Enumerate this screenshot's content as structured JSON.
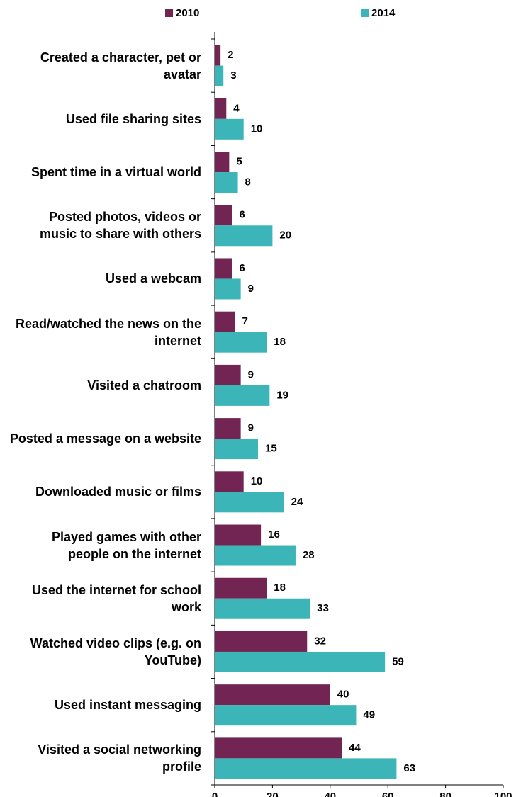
{
  "chart_data": {
    "type": "hbar",
    "categories": [
      "Created a character, pet or avatar",
      "Used file sharing sites",
      "Spent time in a virtual world",
      "Posted photos, videos or music to share with others",
      "Used a webcam",
      "Read/watched the news on the internet",
      "Visited a chatroom",
      "Posted a message on a website",
      "Downloaded music or films",
      "Played games with other people on the internet",
      "Used the internet for school work",
      "Watched video clips (e.g. on YouTube)",
      "Used instant messaging",
      "Visited a social networking profile"
    ],
    "series": [
      {
        "name": "2010",
        "color": "#722552",
        "values": [
          2,
          4,
          5,
          6,
          6,
          7,
          9,
          9,
          10,
          16,
          18,
          32,
          40,
          44
        ]
      },
      {
        "name": "2014",
        "color": "#3bb5b8",
        "values": [
          3,
          10,
          8,
          20,
          9,
          18,
          19,
          15,
          24,
          28,
          33,
          59,
          49,
          63
        ]
      }
    ],
    "xlim": [
      0,
      100
    ],
    "xticks": [
      0,
      20,
      40,
      60,
      80,
      100
    ],
    "grid": false,
    "legend": "top"
  }
}
